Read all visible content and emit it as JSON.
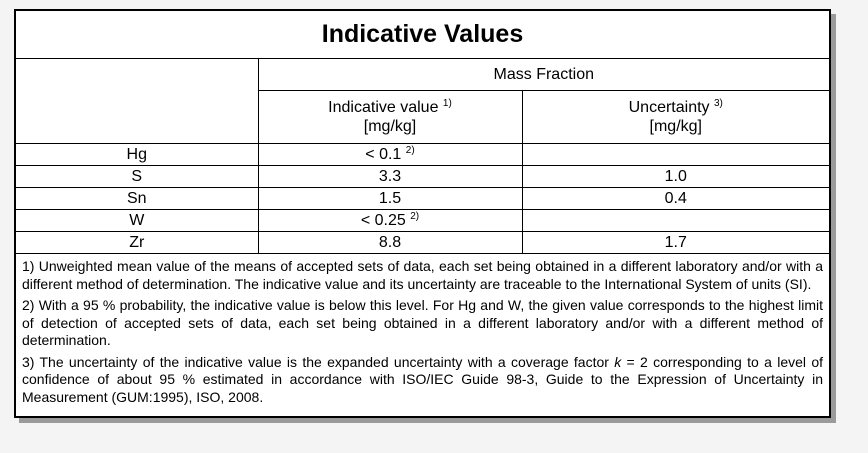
{
  "title": "Indicative Values",
  "header": {
    "group": "Mass Fraction",
    "columns": [
      {
        "label": "Indicative value",
        "note": "1)",
        "unit": "[mg/kg]"
      },
      {
        "label": "Uncertainty",
        "note": "3)",
        "unit": "[mg/kg]"
      }
    ]
  },
  "rows": [
    {
      "element": "Hg",
      "value": "< 0.1",
      "value_note": "2)"
    },
    {
      "element": "S",
      "value": "3.3",
      "uncertainty": "1.0"
    },
    {
      "element": "Sn",
      "value": "1.5",
      "uncertainty": "0.4"
    },
    {
      "element": "W",
      "value": "< 0.25",
      "value_note": "2)"
    },
    {
      "element": "Zr",
      "value": "8.8",
      "uncertainty": "1.7"
    }
  ],
  "notes": [
    [
      "1) Unweighted mean value of the means of accepted sets of data, each set being obtained in a different laboratory and/or with a different method of determination. The indicative value and its uncertainty are traceable to the International System of units (SI)."
    ],
    [
      "2) With a 95 % probability, the indicative value is below this level. For Hg and W, the given value corresponds to the highest limit of detection of accepted sets of data, each set being obtained in a different laboratory and/or with a different method of determination."
    ],
    [
      "3) The uncertainty of the indicative value is the expanded uncertainty with a coverage factor ",
      "k",
      " = 2 corresponding to a level of confidence of about 95 % estimated in accordance with ISO/IEC Guide 98-3, Guide to the Expression of Uncertainty in Measurement (GUM:1995), ISO, 2008."
    ]
  ]
}
